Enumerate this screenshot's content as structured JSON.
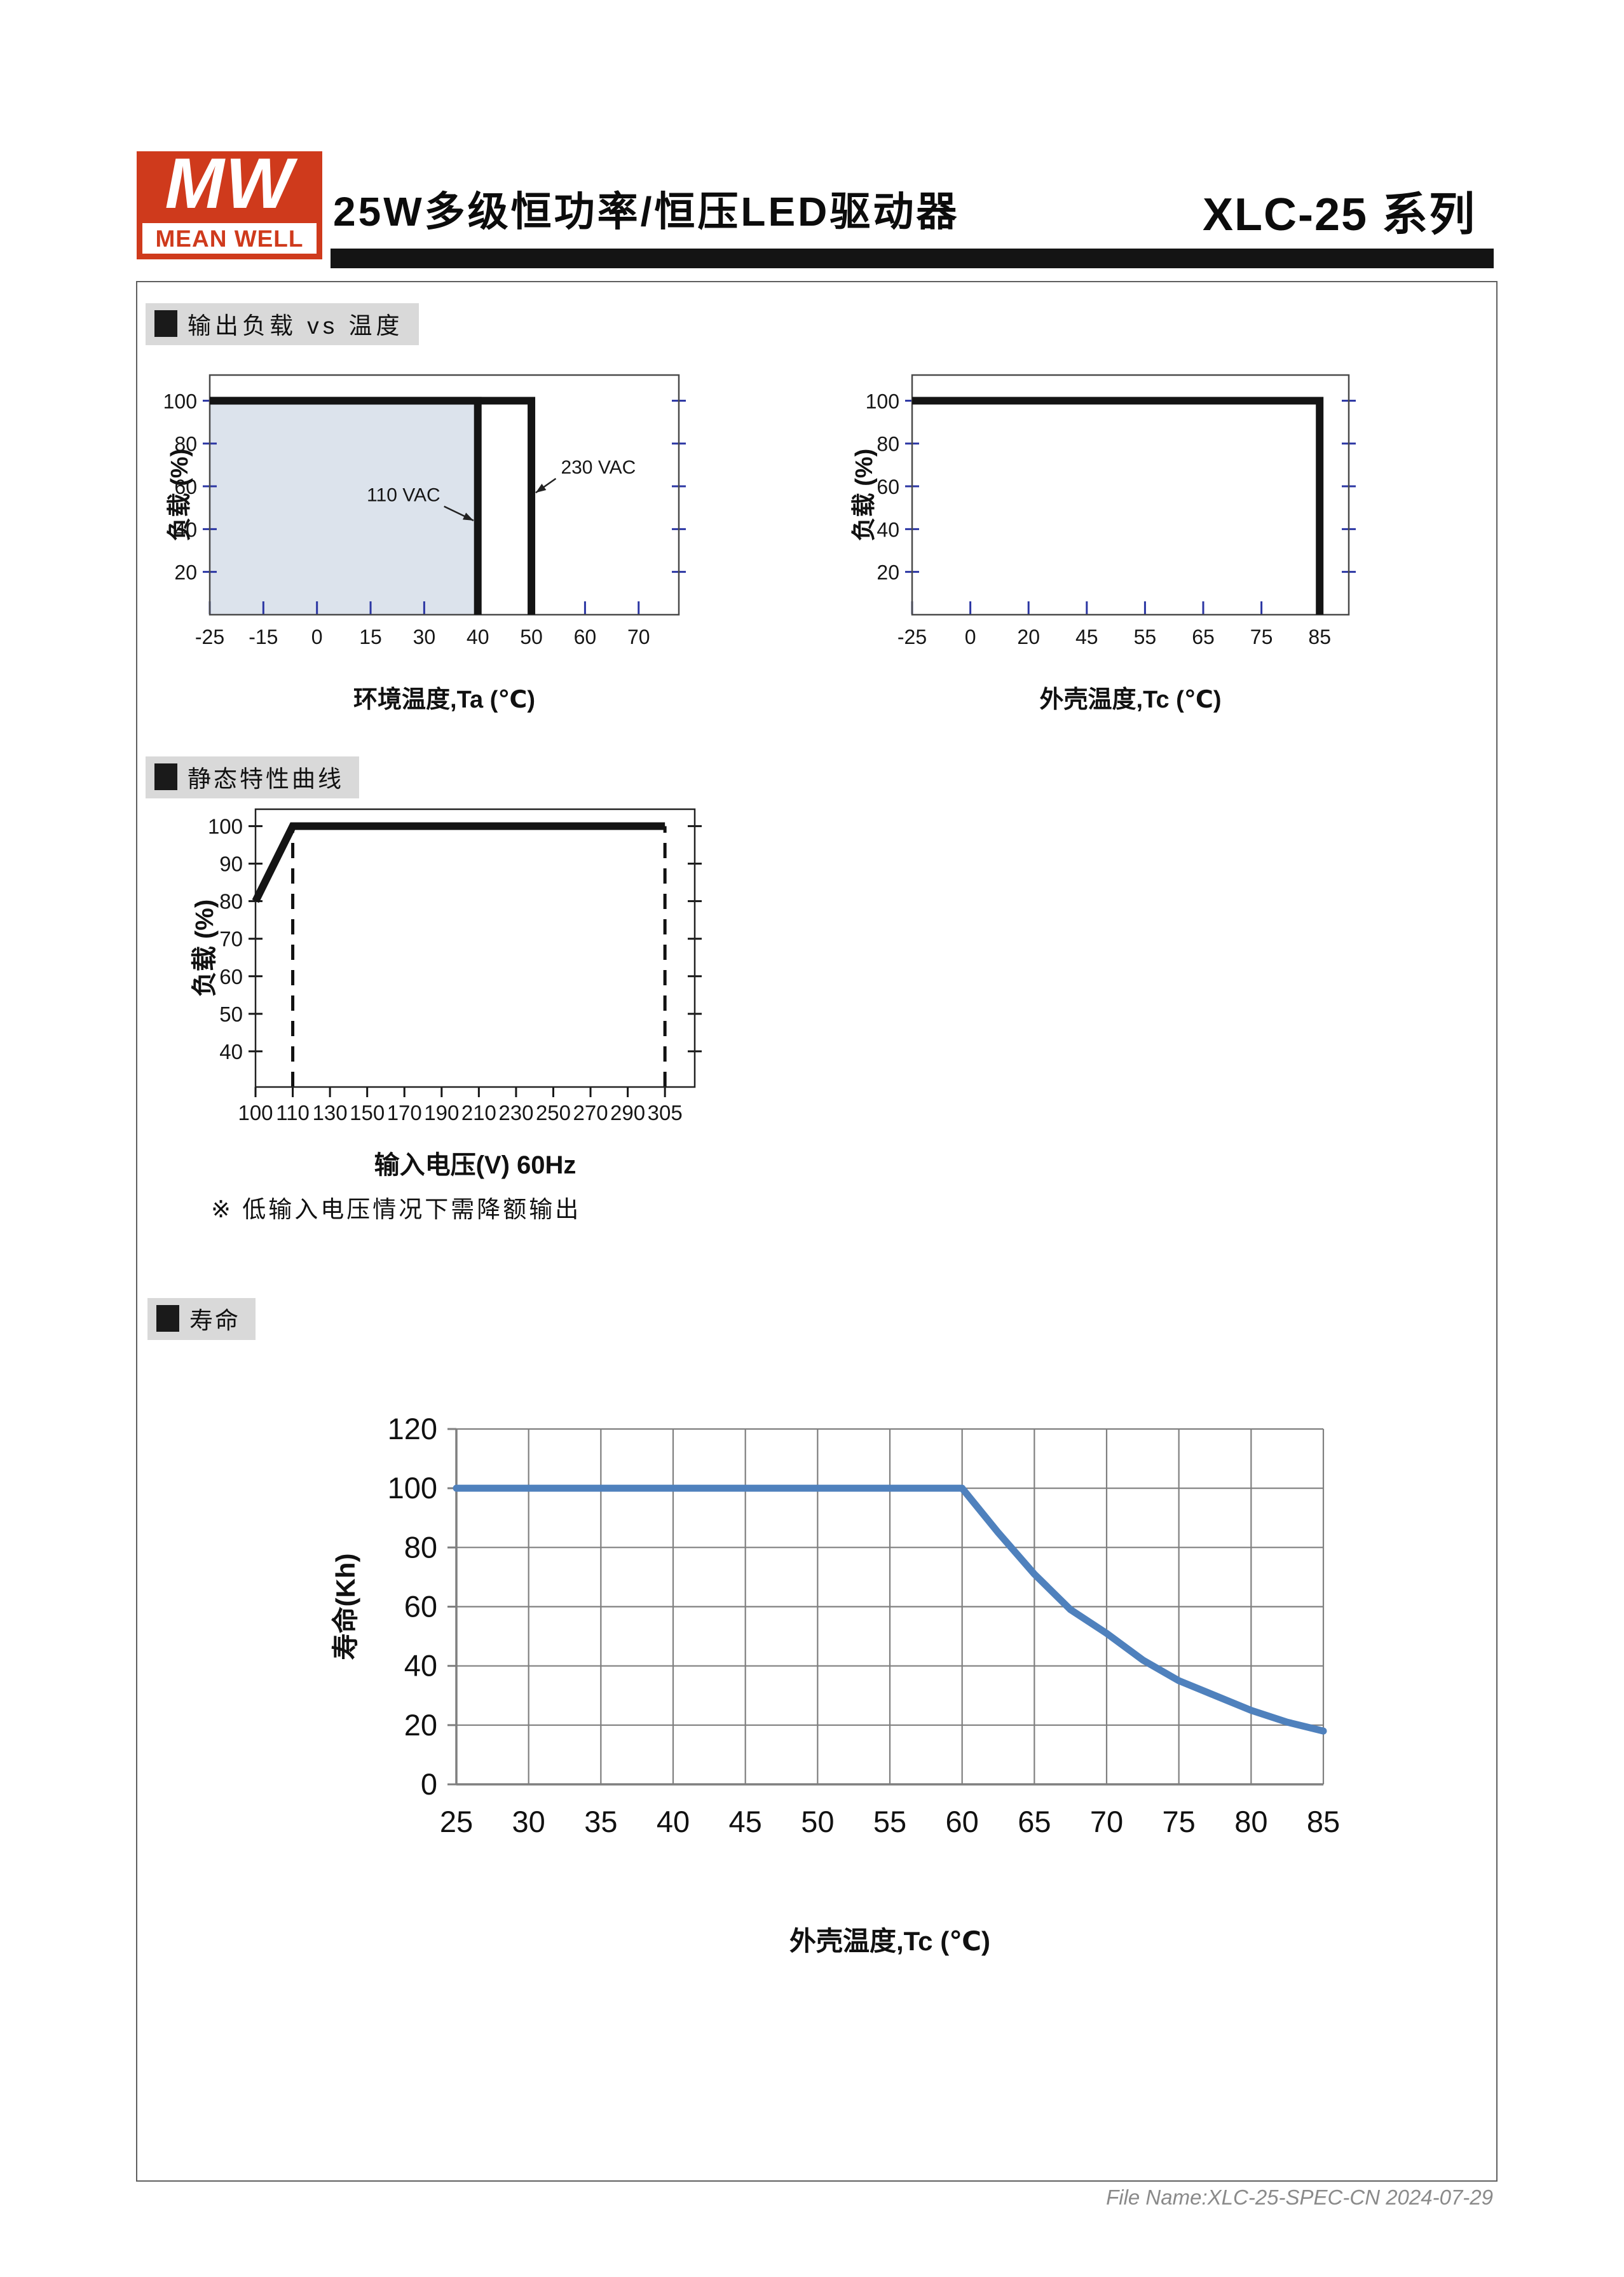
{
  "header": {
    "logo_monogram": "MW",
    "logo_brand": "MEAN WELL",
    "title": "25W多级恒功率/恒压LED驱动器",
    "series_label": "XLC-25 系列"
  },
  "sections": {
    "s1": "输出负载 vs 温度",
    "s2": "静态特性曲线",
    "s3": "寿命"
  },
  "note": "※ 低输入电压情况下需降额输出",
  "footer": "File Name:XLC-25-SPEC-CN  2024-07-29",
  "colors": {
    "brand_red": "#cf3a1c",
    "shade": "#dce3ec",
    "curve_black": "#141414",
    "tick_blue": "#2b36a3",
    "grid_gray": "#7f7f7f",
    "line_blue": "#4f81bd",
    "header_bg": "#d9d9d9"
  },
  "chart_data": [
    {
      "id": "load-vs-ta",
      "type": "line",
      "title": "输出负载 vs 温度",
      "x_mode": "ticks",
      "x_ticks": [
        -25,
        -15,
        0,
        15,
        30,
        40,
        50,
        60,
        70
      ],
      "x_pad": 0.75,
      "ylim": [
        0,
        112
      ],
      "y_ticks": [
        20,
        40,
        60,
        80,
        100
      ],
      "xlabel": "环境温度,Ta (℃)",
      "ylabel": "负载 (%)",
      "grid": false,
      "series": [
        {
          "name": "110 VAC",
          "points": [
            [
              -25,
              100
            ],
            [
              40,
              100
            ],
            [
              40,
              0
            ]
          ]
        },
        {
          "name": "230 VAC",
          "points": [
            [
              -25,
              100
            ],
            [
              50,
              100
            ],
            [
              50,
              0
            ]
          ]
        }
      ],
      "shade": {
        "x": [
          -25,
          40
        ],
        "y": 100
      },
      "annotations": [
        {
          "text": "110 VAC",
          "tx": 33,
          "ty": 53,
          "ax": 39.2,
          "ay": 44,
          "anchor": "end"
        },
        {
          "text": "230 VAC",
          "tx": 55.5,
          "ty": 66,
          "ax": 50.8,
          "ay": 57,
          "anchor": "start"
        }
      ]
    },
    {
      "id": "load-vs-tc",
      "type": "line",
      "title": "输出负载 vs 温度",
      "x_mode": "ticks",
      "x_ticks": [
        -25,
        0,
        20,
        45,
        55,
        65,
        75,
        85
      ],
      "x_pad": 0.5,
      "ylim": [
        0,
        112
      ],
      "y_ticks": [
        20,
        40,
        60,
        80,
        100
      ],
      "xlabel": "外壳温度,Tc (℃)",
      "ylabel": "负载 (%)",
      "grid": false,
      "series": [
        {
          "name": "load",
          "points": [
            [
              -25,
              100
            ],
            [
              85,
              100
            ],
            [
              85,
              0
            ]
          ]
        }
      ]
    },
    {
      "id": "static-characteristic",
      "type": "line",
      "title": "静态特性曲线",
      "x_mode": "ticks",
      "x_ticks": [
        100,
        110,
        130,
        150,
        170,
        190,
        210,
        230,
        250,
        270,
        290,
        305
      ],
      "x_pad": 0.8,
      "ylim": [
        30.5,
        104.5
      ],
      "y_ticks": [
        40,
        50,
        60,
        70,
        80,
        90,
        100
      ],
      "xlabel": "输入电压(V) 60Hz",
      "ylabel": "负载 (%)",
      "grid": false,
      "series": [
        {
          "name": "load",
          "points": [
            [
              100,
              80
            ],
            [
              110,
              100
            ],
            [
              305,
              100
            ]
          ]
        }
      ],
      "guides": [
        {
          "x": 110,
          "to": 100
        },
        {
          "x": 305,
          "to": 100
        }
      ]
    },
    {
      "id": "lifetime",
      "type": "line",
      "title": "寿命",
      "x_mode": "linear",
      "xlim": [
        25,
        85
      ],
      "x_ticks": [
        25,
        30,
        35,
        40,
        45,
        50,
        55,
        60,
        65,
        70,
        75,
        80,
        85
      ],
      "ylim": [
        0,
        120
      ],
      "y_ticks": [
        0,
        20,
        40,
        60,
        80,
        100,
        120
      ],
      "xlabel": "外壳温度,Tc (℃)",
      "ylabel": "寿命(Kh)",
      "grid": true,
      "series": [
        {
          "name": "lifetime",
          "points": [
            [
              25,
              100
            ],
            [
              60,
              100
            ],
            [
              62.5,
              85
            ],
            [
              65,
              71
            ],
            [
              67.5,
              59
            ],
            [
              70,
              51
            ],
            [
              72.5,
              42
            ],
            [
              75,
              35
            ],
            [
              77.5,
              30
            ],
            [
              80,
              25
            ],
            [
              82.5,
              21
            ],
            [
              85,
              18
            ]
          ]
        }
      ]
    }
  ]
}
